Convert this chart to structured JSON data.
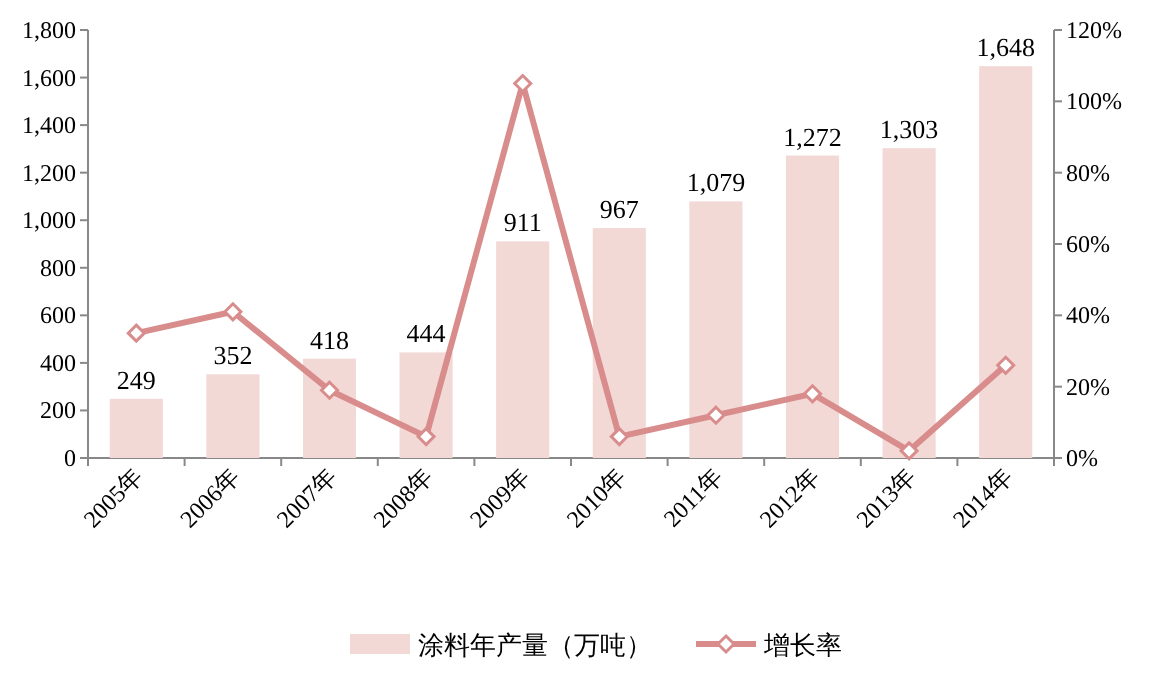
{
  "chart_data": {
    "type": "bar",
    "categories": [
      "2005年",
      "2006年",
      "2007年",
      "2008年",
      "2009年",
      "2010年",
      "2011年",
      "2012年",
      "2013年",
      "2014年"
    ],
    "series": [
      {
        "name": "涂料年产量（万吨）",
        "color": "#f2d9d6",
        "values": [
          249,
          352,
          418,
          444,
          911,
          967,
          1079,
          1272,
          1303,
          1648
        ],
        "value_labels": [
          "249",
          "352",
          "418",
          "444",
          "911",
          "967",
          "1,079",
          "1,272",
          "1,303",
          "1,648"
        ]
      },
      {
        "name": "增长率",
        "type": "line",
        "axis": "y2",
        "color": "#d98c8c",
        "values": [
          35,
          41,
          19,
          6,
          105,
          6,
          12,
          18,
          2,
          26
        ]
      }
    ],
    "ylim": [
      0,
      1800
    ],
    "yticks": [
      0,
      200,
      400,
      600,
      800,
      {
        "value": 1000,
        "label": "1,000"
      },
      {
        "value": 1200,
        "label": "1,200"
      },
      {
        "value": 1400,
        "label": "1,400"
      },
      {
        "value": 1600,
        "label": "1,600"
      },
      {
        "value": 1800,
        "label": "1,800"
      }
    ],
    "y2lim": [
      0,
      120
    ],
    "y2ticks": [
      {
        "value": 0,
        "label": "0%"
      },
      {
        "value": 20,
        "label": "20%"
      },
      {
        "value": 40,
        "label": "40%"
      },
      {
        "value": 60,
        "label": "60%"
      },
      {
        "value": 80,
        "label": "80%"
      },
      {
        "value": 100,
        "label": "100%"
      },
      {
        "value": 120,
        "label": "120%"
      }
    ],
    "marker": "diamond",
    "legend": "bottom"
  }
}
